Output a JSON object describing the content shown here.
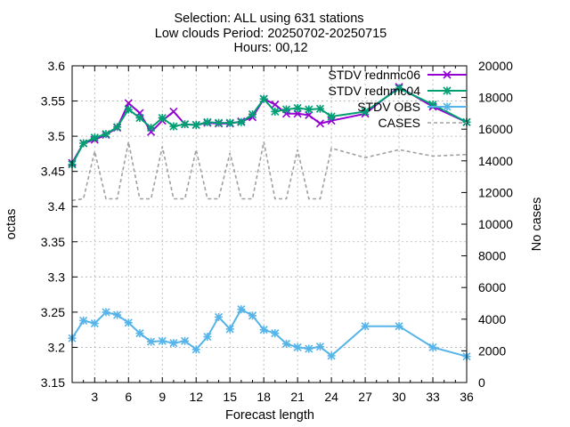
{
  "chart_data": {
    "type": "line",
    "title_lines": [
      "Selection: ALL using   631 stations",
      "Low clouds   Period: 20250702-20250715",
      "Hours: 00,12"
    ],
    "xlabel": "Forecast length",
    "ylabel": "octas",
    "y2label": "No cases",
    "xlim": [
      1,
      36
    ],
    "ylim": [
      3.15,
      3.6
    ],
    "y2lim": [
      0,
      20000
    ],
    "x_ticks": [
      3,
      6,
      9,
      12,
      15,
      18,
      21,
      24,
      27,
      30,
      33,
      36
    ],
    "y_ticks": [
      "3.15",
      "3.2",
      "3.25",
      "3.3",
      "3.35",
      "3.4",
      "3.45",
      "3.5",
      "3.55",
      "3.6"
    ],
    "y2_ticks": [
      "0",
      "2000",
      "4000",
      "6000",
      "8000",
      "10000",
      "12000",
      "14000",
      "16000",
      "18000",
      "20000"
    ],
    "grid": true,
    "legend_position": "top-right",
    "x": [
      1,
      2,
      3,
      4,
      5,
      6,
      7,
      8,
      9,
      10,
      11,
      12,
      13,
      14,
      15,
      16,
      17,
      18,
      19,
      20,
      21,
      22,
      23,
      24,
      27,
      30,
      33,
      36
    ],
    "series": [
      {
        "name": "STDV rednmc06",
        "axis": "y",
        "color": "#9400d3",
        "marker": "x",
        "values": [
          3.462,
          3.49,
          3.495,
          3.502,
          3.512,
          3.547,
          3.533,
          3.506,
          3.522,
          3.535,
          3.517,
          3.516,
          3.519,
          3.518,
          3.518,
          3.521,
          3.527,
          3.553,
          3.545,
          3.532,
          3.532,
          3.53,
          3.518,
          3.522,
          3.532,
          3.57,
          3.542,
          3.52
        ]
      },
      {
        "name": "STDV rednmc04",
        "axis": "y",
        "color": "#009e73",
        "marker": "star",
        "values": [
          3.46,
          3.49,
          3.498,
          3.503,
          3.513,
          3.538,
          3.526,
          3.512,
          3.526,
          3.514,
          3.517,
          3.516,
          3.52,
          3.519,
          3.519,
          3.52,
          3.531,
          3.553,
          3.535,
          3.538,
          3.54,
          3.538,
          3.539,
          3.528,
          3.535,
          3.568,
          3.545,
          3.52
        ]
      },
      {
        "name": "STDV OBS",
        "axis": "y",
        "color": "#56b4e9",
        "marker": "star",
        "values": [
          3.213,
          3.238,
          3.234,
          3.25,
          3.246,
          3.235,
          3.22,
          3.208,
          3.209,
          3.206,
          3.209,
          3.197,
          3.215,
          3.243,
          3.226,
          3.254,
          3.245,
          3.225,
          3.22,
          3.205,
          3.2,
          3.198,
          3.201,
          3.188,
          3.23,
          3.23,
          3.2,
          3.187
        ]
      },
      {
        "name": "CASES",
        "axis": "y2",
        "color": "#a0a0a0",
        "dashed": true,
        "values": [
          11500,
          11600,
          14600,
          11600,
          11600,
          15200,
          11600,
          11600,
          14900,
          11600,
          11600,
          14700,
          11600,
          11600,
          14500,
          11600,
          11600,
          15200,
          11600,
          11600,
          14700,
          11600,
          11600,
          14800,
          14200,
          14700,
          14300,
          14400
        ]
      }
    ]
  }
}
